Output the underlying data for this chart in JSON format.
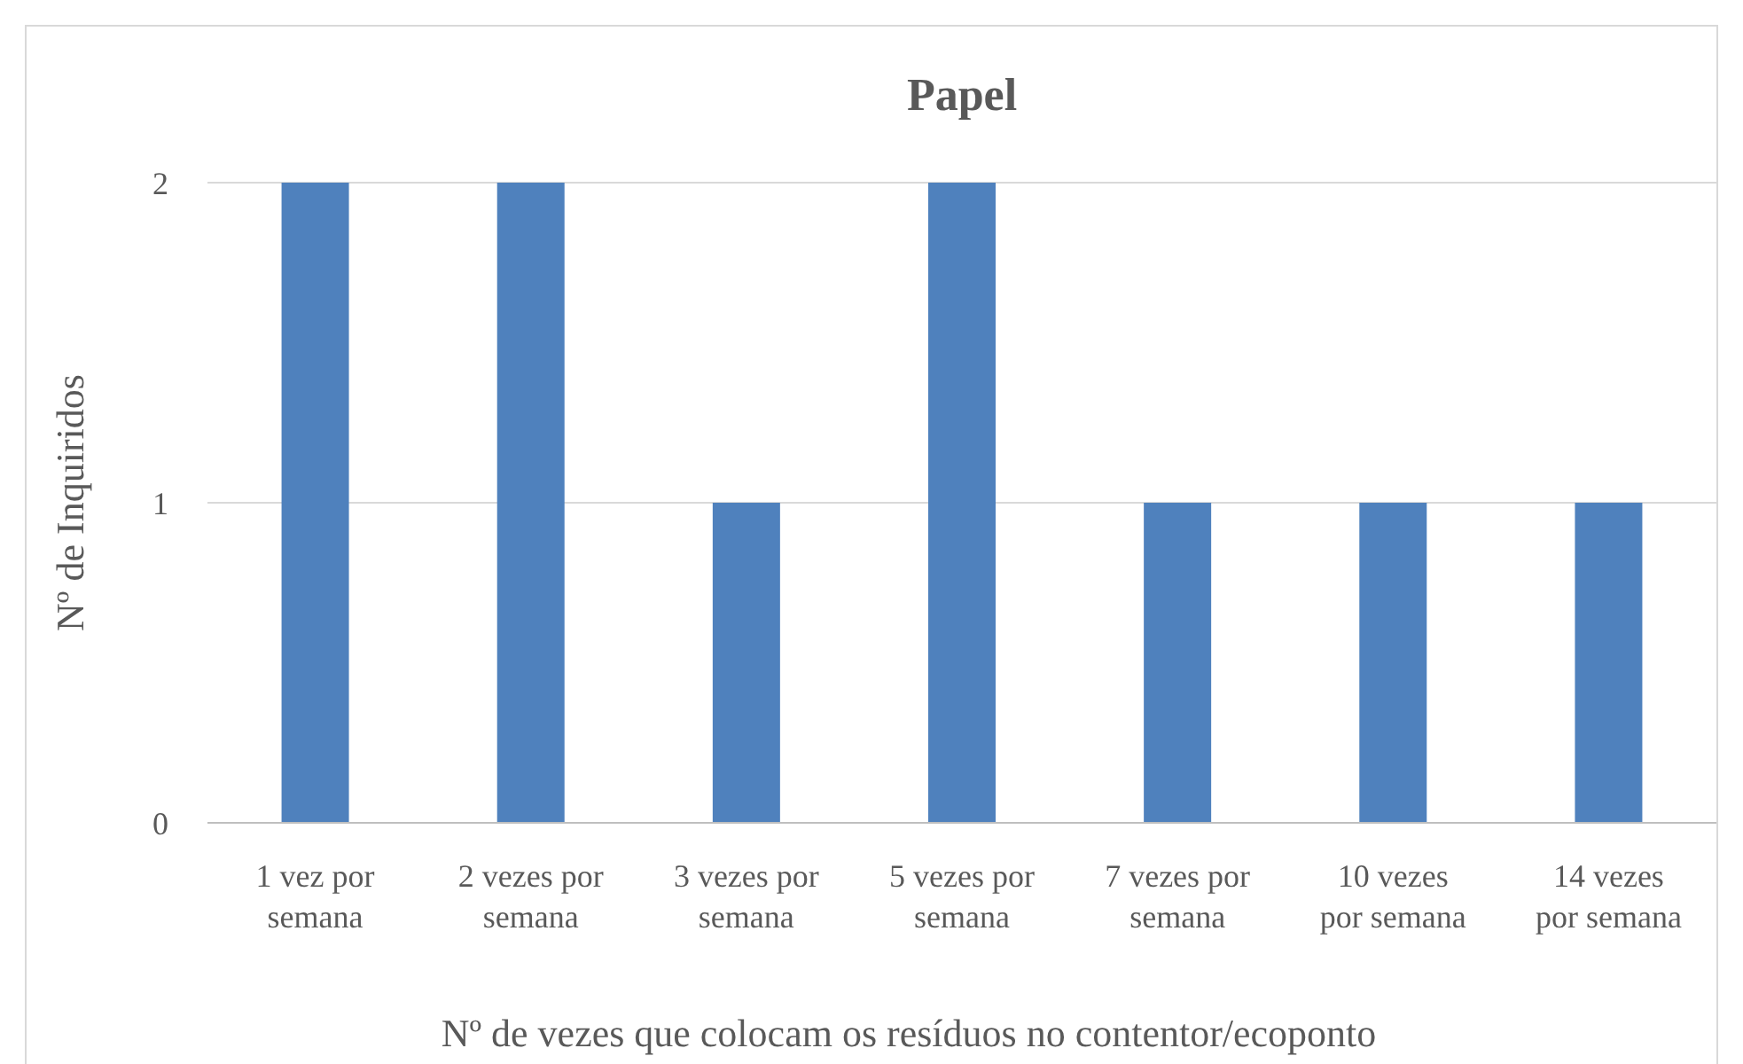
{
  "chart_data": {
    "type": "bar",
    "title": "Papel",
    "xlabel": "Nº de vezes que colocam os resíduos no contentor/ecoponto",
    "ylabel": "Nº de Inquiridos",
    "categories": [
      "1 vez por semana",
      "2 vezes por semana",
      "3 vezes por semana",
      "5 vezes por semana",
      "7 vezes por semana",
      "10 vezes por semana",
      "14 vezes por semana"
    ],
    "values": [
      2,
      2,
      1,
      2,
      1,
      1,
      1
    ],
    "color": "#4f81bd",
    "ylim": [
      0,
      2
    ],
    "yticks": [
      0,
      1,
      2
    ],
    "grid": "y"
  }
}
